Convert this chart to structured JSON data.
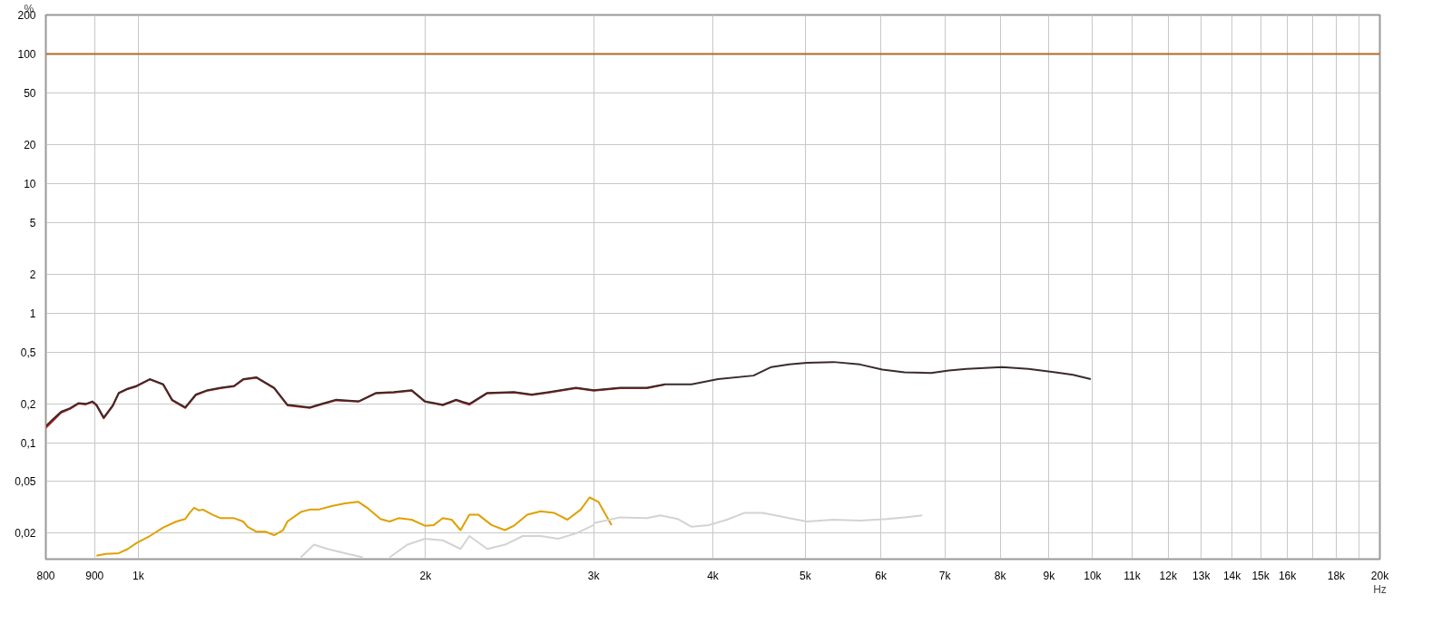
{
  "chart_data": {
    "type": "line",
    "log": "xy",
    "grid": true,
    "ylabel": "%",
    "xlabel": "Hz",
    "xlim": [
      800,
      20000
    ],
    "ylim": [
      0.0126,
      200
    ],
    "xticks": [
      800,
      900,
      {
        "value": 1000,
        "label": "1k"
      },
      {
        "value": 2000,
        "label": "2k"
      },
      {
        "value": 3000,
        "label": "3k"
      },
      {
        "value": 4000,
        "label": "4k"
      },
      {
        "value": 5000,
        "label": "5k"
      },
      {
        "value": 6000,
        "label": "6k"
      },
      {
        "value": 7000,
        "label": "7k"
      },
      {
        "value": 8000,
        "label": "8k"
      },
      {
        "value": 9000,
        "label": "9k"
      },
      {
        "value": 10000,
        "label": "10k"
      },
      {
        "value": 11000,
        "label": "11k"
      },
      {
        "value": 12000,
        "label": "12k"
      },
      {
        "value": 13000,
        "label": "13k"
      },
      {
        "value": 14000,
        "label": "14k"
      },
      {
        "value": 15000,
        "label": "15k"
      },
      {
        "value": 16000,
        "label": "16k"
      },
      {
        "value": 17000,
        "label": null
      },
      {
        "value": 18000,
        "label": "18k"
      },
      {
        "value": 19000,
        "label": null
      },
      {
        "value": 20000,
        "label": "20k"
      }
    ],
    "yticks": [
      {
        "value": 0.02,
        "label": "0,02"
      },
      {
        "value": 0.05,
        "label": "0,05"
      },
      {
        "value": 0.1,
        "label": "0,1"
      },
      {
        "value": 0.2,
        "label": "0,2"
      },
      {
        "value": 0.5,
        "label": "0,5"
      },
      1,
      2,
      5,
      10,
      20,
      50,
      100,
      200
    ],
    "series": [
      {
        "color": "#b06a2a",
        "x": [
          800,
          20000
        ],
        "values": [
          100,
          100
        ]
      },
      {
        "color": "#cc2222",
        "x": [
          800,
          812,
          830,
          848,
          866,
          881,
          895,
          904,
          920,
          940,
          954,
          975,
          996,
          1028,
          1062,
          1085,
          1120,
          1149,
          1182,
          1220,
          1260,
          1288,
          1330,
          1388,
          1433,
          1512,
          1545,
          1612,
          1701,
          1775,
          1853,
          1934,
          1997,
          2085,
          2153,
          2223,
          2321,
          2475,
          2584,
          2696,
          2875,
          3001,
          3200,
          3412,
          3562
        ],
        "values": [
          0.13,
          0.145,
          0.17,
          0.182,
          0.2,
          0.197,
          0.206,
          0.194,
          0.154,
          0.191,
          0.24,
          0.259,
          0.272,
          0.307,
          0.28,
          0.212,
          0.185,
          0.233,
          0.252,
          0.263,
          0.272,
          0.306,
          0.317,
          0.263,
          0.194,
          0.185,
          0.194,
          0.212,
          0.207,
          0.24,
          0.244,
          0.252,
          0.207,
          0.194,
          0.212,
          0.196,
          0.24,
          0.244,
          0.233,
          0.244,
          0.263,
          0.252,
          0.263,
          0.263,
          0.28
        ]
      },
      {
        "color": "#3b2b2b",
        "x": [
          800,
          812,
          830,
          848,
          866,
          881,
          895,
          904,
          920,
          940,
          954,
          975,
          996,
          1028,
          1062,
          1085,
          1120,
          1149,
          1182,
          1220,
          1260,
          1288,
          1330,
          1388,
          1433,
          1512,
          1545,
          1612,
          1701,
          1775,
          1853,
          1934,
          1997,
          2085,
          2153,
          2223,
          2321,
          2475,
          2584,
          2696,
          2875,
          3001,
          3200,
          3412,
          3562,
          3799,
          4050,
          4412,
          4606,
          4807,
          5019,
          5352,
          5706,
          6021,
          6353,
          6772,
          7069,
          7378,
          8038,
          8570,
          9140,
          9539,
          9957
        ],
        "values": [
          0.134,
          0.149,
          0.173,
          0.184,
          0.202,
          0.199,
          0.208,
          0.196,
          0.156,
          0.193,
          0.242,
          0.261,
          0.274,
          0.309,
          0.282,
          0.214,
          0.187,
          0.235,
          0.254,
          0.265,
          0.274,
          0.309,
          0.319,
          0.265,
          0.196,
          0.187,
          0.196,
          0.214,
          0.208,
          0.242,
          0.246,
          0.254,
          0.208,
          0.196,
          0.214,
          0.199,
          0.242,
          0.246,
          0.235,
          0.246,
          0.265,
          0.254,
          0.265,
          0.265,
          0.282,
          0.282,
          0.309,
          0.329,
          0.383,
          0.401,
          0.413,
          0.419,
          0.401,
          0.366,
          0.349,
          0.344,
          0.36,
          0.371,
          0.383,
          0.371,
          0.349,
          0.334,
          0.309
        ]
      },
      {
        "color": "#e0a000",
        "x": [
          904,
          924,
          954,
          975,
          996,
          1028,
          1062,
          1096,
          1120,
          1132,
          1144,
          1157,
          1169,
          1195,
          1220,
          1260,
          1288,
          1302,
          1330,
          1359,
          1388,
          1418,
          1433,
          1480,
          1512,
          1545,
          1594,
          1647,
          1701,
          1737,
          1794,
          1834,
          1874,
          1934,
          1997,
          2040,
          2085,
          2130,
          2176,
          2223,
          2271,
          2345,
          2422,
          2475,
          2556,
          2640,
          2727,
          2816,
          2908,
          2971,
          3035,
          3133
        ],
        "values": [
          0.0134,
          0.0138,
          0.014,
          0.0151,
          0.0168,
          0.019,
          0.0221,
          0.0246,
          0.0257,
          0.0287,
          0.0314,
          0.03,
          0.0304,
          0.0278,
          0.0261,
          0.0261,
          0.0246,
          0.0224,
          0.0205,
          0.0205,
          0.0193,
          0.0211,
          0.0246,
          0.0291,
          0.0304,
          0.0304,
          0.0324,
          0.0339,
          0.0349,
          0.0314,
          0.0257,
          0.0246,
          0.0261,
          0.0254,
          0.0228,
          0.0231,
          0.0261,
          0.0254,
          0.0211,
          0.0278,
          0.0278,
          0.0231,
          0.0211,
          0.0228,
          0.0278,
          0.0295,
          0.0287,
          0.0254,
          0.0304,
          0.0377,
          0.0349,
          0.0231
        ]
      },
      {
        "color": "#d3d3d3",
        "x": [
          3001,
          3200,
          3412,
          3524,
          3678,
          3799,
          3964,
          4138,
          4319,
          4508,
          4655,
          4807,
          5019,
          5352,
          5706,
          6084,
          6353,
          6629
        ],
        "values": [
          0.0239,
          0.0265,
          0.0261,
          0.0274,
          0.0257,
          0.0224,
          0.0231,
          0.0254,
          0.0287,
          0.0287,
          0.0274,
          0.0261,
          0.0246,
          0.0254,
          0.025,
          0.0257,
          0.0265,
          0.0274
        ]
      },
      {
        "color": "#d3d3d3",
        "x": [
          1834,
          1914,
          1997,
          2085,
          2176,
          2223,
          2321,
          2422,
          2529,
          2640,
          2754,
          2875,
          3001
        ],
        "values": [
          0.013,
          0.0163,
          0.0181,
          0.0176,
          0.0151,
          0.019,
          0.0151,
          0.0163,
          0.019,
          0.019,
          0.0181,
          0.0199,
          0.0231
        ]
      },
      {
        "color": "#d3d3d3",
        "x": [
          1480,
          1528,
          1579,
          1647,
          1719
        ],
        "values": [
          0.013,
          0.0163,
          0.0151,
          0.014,
          0.013
        ]
      }
    ]
  }
}
